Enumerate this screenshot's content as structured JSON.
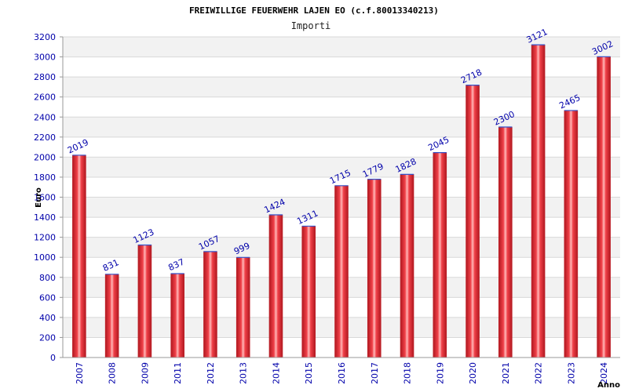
{
  "chart_data": {
    "type": "bar",
    "title": "FREIWILLIGE FEUERWEHR LAJEN EO (c.f.80013340213)",
    "subtitle": "Importi",
    "ylabel": "Euro",
    "xlabel": "Anno",
    "ylim": [
      0,
      3200
    ],
    "yticks": [
      0,
      200,
      400,
      600,
      800,
      1000,
      1200,
      1400,
      1600,
      1800,
      2000,
      2200,
      2400,
      2600,
      2800,
      3000,
      3200
    ],
    "grid": true,
    "categories": [
      "2007",
      "2008",
      "2009",
      "2011",
      "2012",
      "2013",
      "2014",
      "2015",
      "2016",
      "2017",
      "2018",
      "2019",
      "2020",
      "2021",
      "2022",
      "2023",
      "2024"
    ],
    "values": [
      2019,
      831,
      1123,
      837,
      1057,
      999,
      1424,
      1311,
      1715,
      1779,
      1828,
      2045,
      2718,
      2300,
      3121,
      2465,
      3002
    ],
    "colors": {
      "bar_edge": "#b01820",
      "bar_center": "#ffb0b0",
      "bar_mid": "#e8303a",
      "tick_text": "#0000aa",
      "band": "#f2f2f2"
    }
  }
}
